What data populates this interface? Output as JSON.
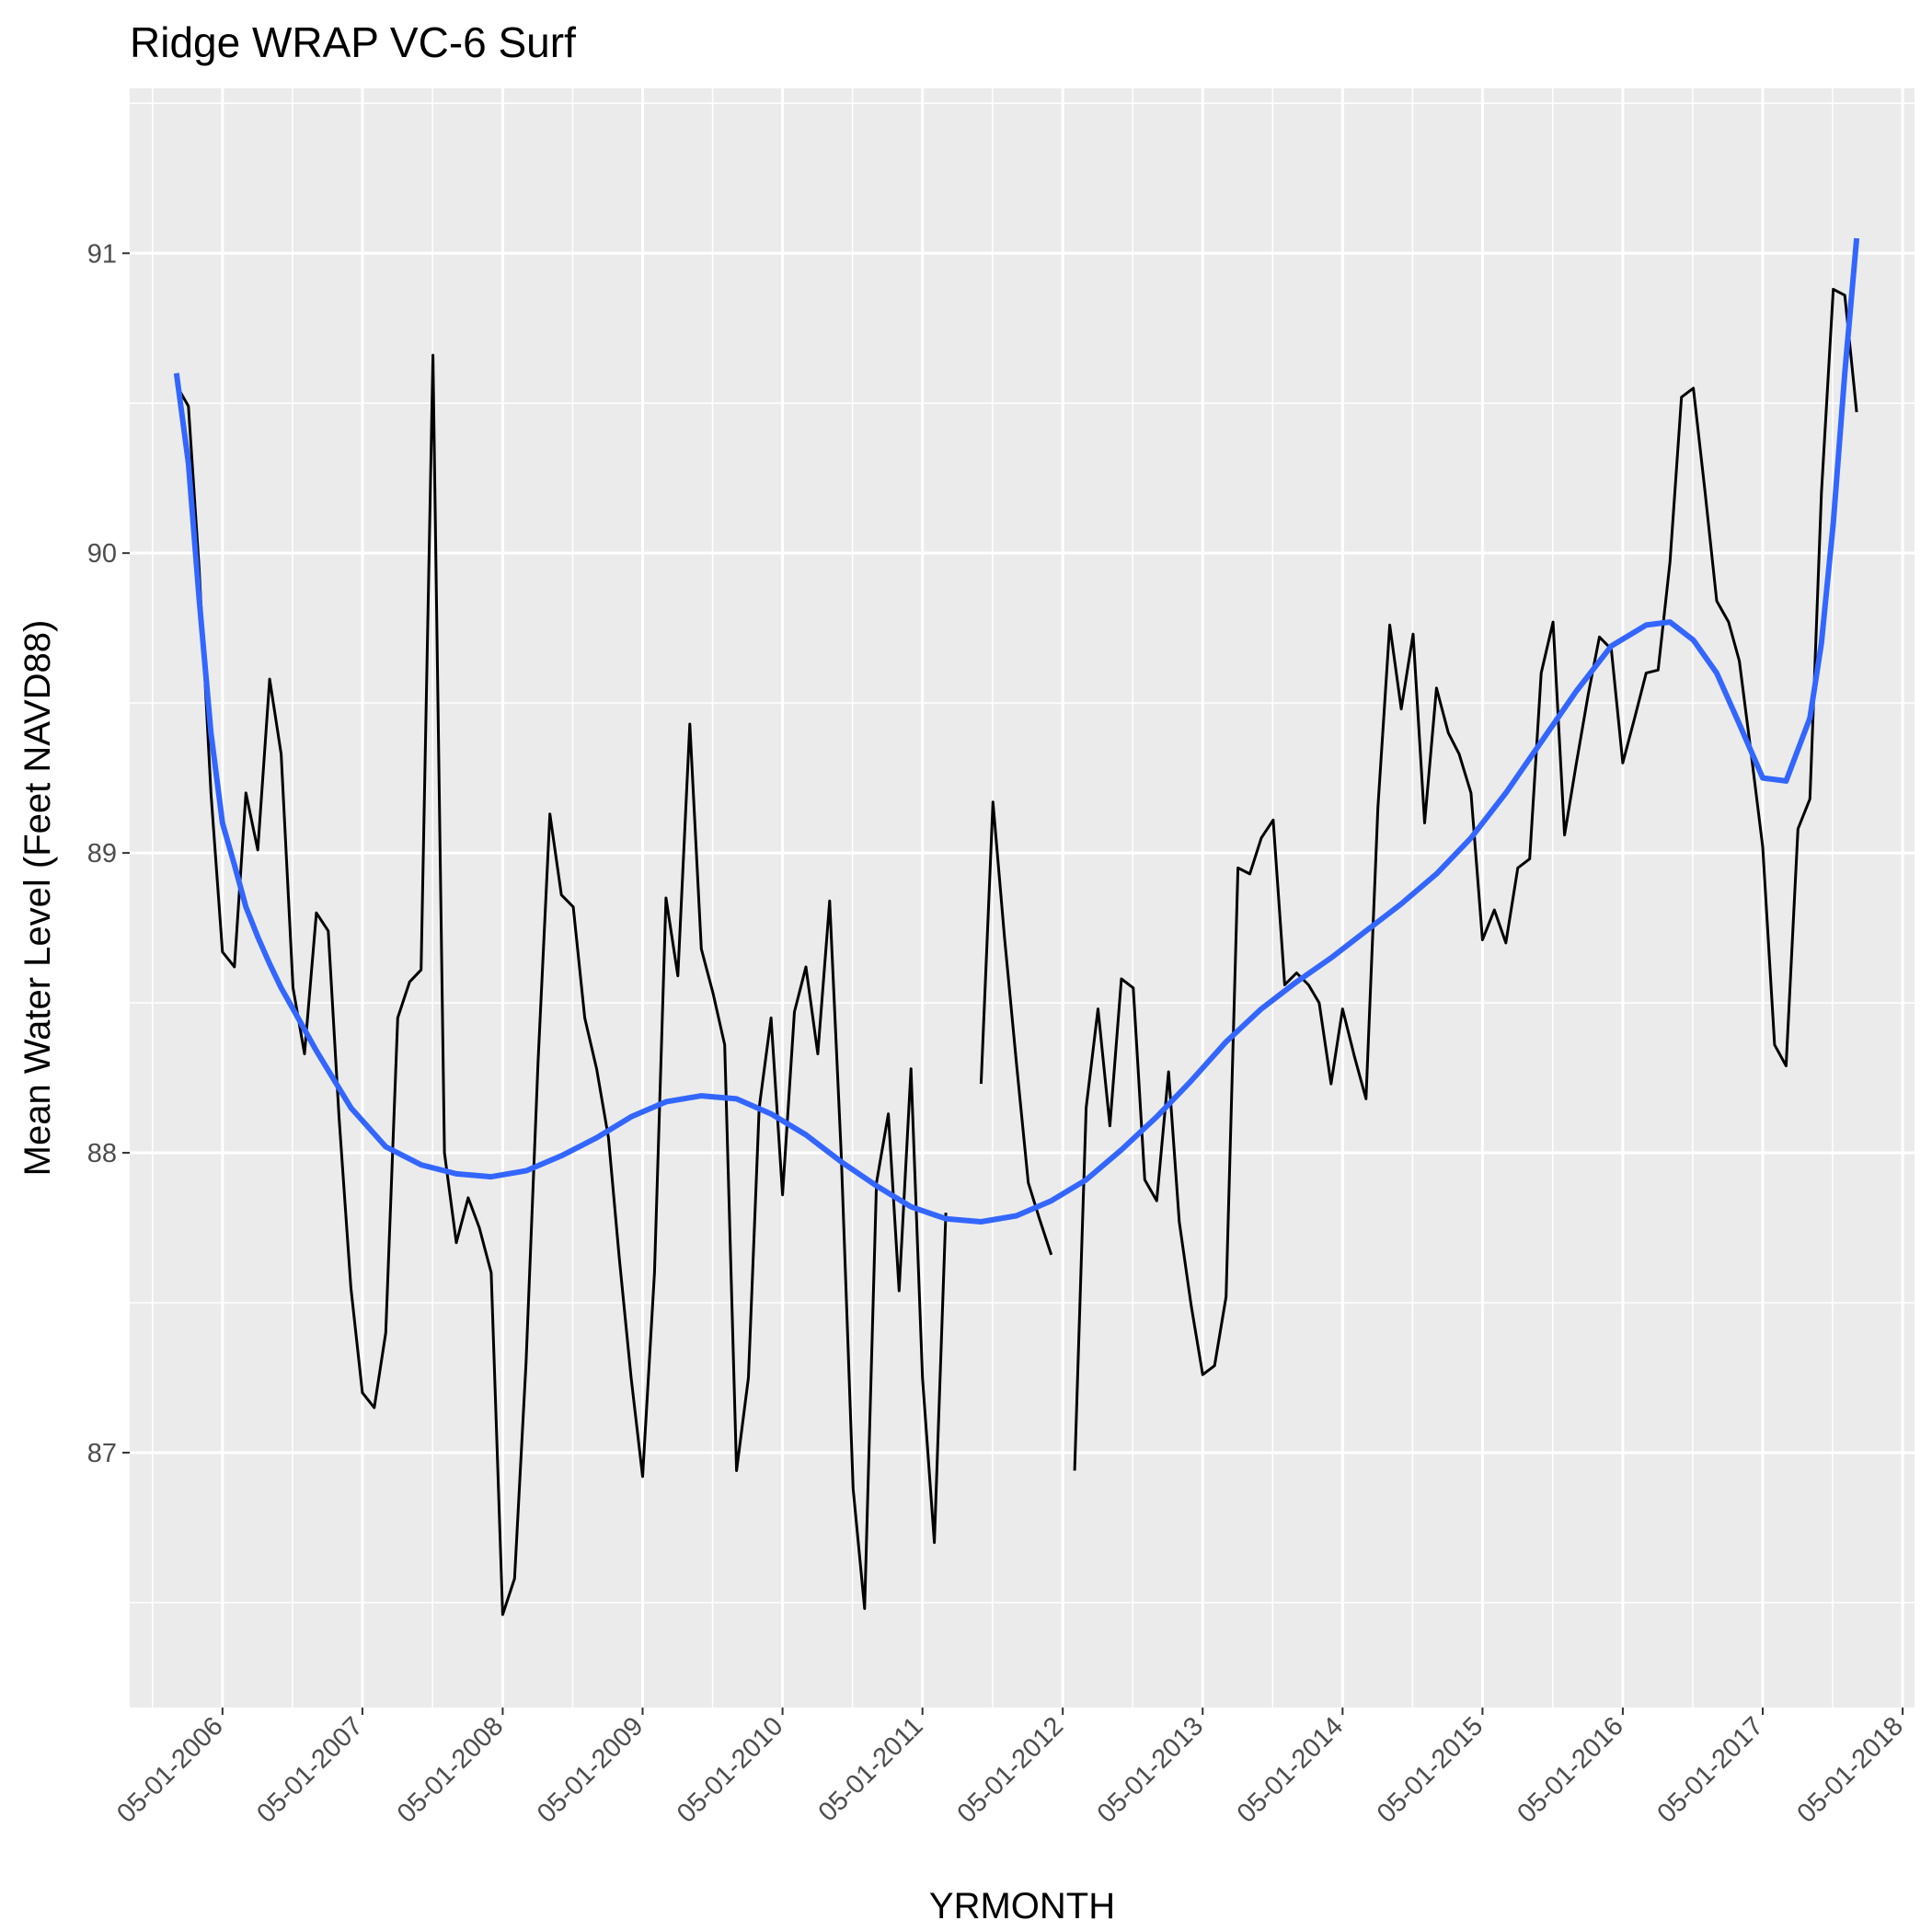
{
  "chart_data": {
    "type": "line",
    "title": "Ridge WRAP VC-6 Surf",
    "xlabel": "YRMONTH",
    "ylabel": "Mean Water Level (Feet NAVD88)",
    "x_type": "date",
    "xlim": [
      "2005-09-01",
      "2018-06-01"
    ],
    "ylim": [
      86.15,
      91.55
    ],
    "grid": true,
    "legend": "none",
    "x_ticks": [
      "2006-05-01",
      "2007-05-01",
      "2008-05-01",
      "2009-05-01",
      "2010-05-01",
      "2011-05-01",
      "2012-05-01",
      "2013-05-01",
      "2014-05-01",
      "2015-05-01",
      "2016-05-01",
      "2017-05-01",
      "2018-05-01"
    ],
    "x_tick_labels": [
      "05-01-2006",
      "05-01-2007",
      "05-01-2008",
      "05-01-2009",
      "05-01-2010",
      "05-01-2011",
      "05-01-2012",
      "05-01-2013",
      "05-01-2014",
      "05-01-2015",
      "05-01-2016",
      "05-01-2017",
      "05-01-2018"
    ],
    "y_ticks": [
      87,
      88,
      89,
      90,
      91
    ],
    "y_tick_labels": [
      "87",
      "88",
      "89",
      "90",
      "91"
    ],
    "colors": {
      "panel_bg": "#ebebeb",
      "grid": "#ffffff",
      "series_line": "#000000",
      "smooth_line": "#3366ff",
      "tick_text": "#4d4d4d"
    },
    "series": [
      {
        "values": [
          [
            "2006-01-01",
            90.56
          ],
          [
            "2006-02-01",
            90.49
          ],
          [
            "2006-03-01",
            89.95
          ],
          [
            "2006-04-01",
            89.2
          ],
          [
            "2006-05-01",
            88.67
          ],
          [
            "2006-06-01",
            88.62
          ],
          [
            "2006-07-01",
            89.2
          ],
          [
            "2006-08-01",
            89.01
          ],
          [
            "2006-09-01",
            89.58
          ],
          [
            "2006-10-01",
            89.33
          ],
          [
            "2006-11-01",
            88.55
          ],
          [
            "2006-12-01",
            88.33
          ],
          [
            "2007-01-01",
            88.8
          ],
          [
            "2007-02-01",
            88.74
          ],
          [
            "2007-03-01",
            88.12
          ],
          [
            "2007-04-01",
            87.55
          ],
          [
            "2007-05-01",
            87.2
          ],
          [
            "2007-06-01",
            87.15
          ],
          [
            "2007-07-01",
            87.4
          ],
          [
            "2007-08-01",
            88.45
          ],
          [
            "2007-09-01",
            88.57
          ],
          [
            "2007-10-01",
            88.61
          ],
          [
            "2007-11-01",
            90.66
          ],
          [
            "2007-12-01",
            88.0
          ],
          [
            "2008-01-01",
            87.7
          ],
          [
            "2008-02-01",
            87.85
          ],
          [
            "2008-03-01",
            87.75
          ],
          [
            "2008-04-01",
            87.6
          ],
          [
            "2008-05-01",
            86.46
          ],
          [
            "2008-06-01",
            86.58
          ],
          [
            "2008-07-01",
            87.3
          ],
          [
            "2008-08-01",
            88.3
          ],
          [
            "2008-09-01",
            89.13
          ],
          [
            "2008-10-01",
            88.86
          ],
          [
            "2008-11-01",
            88.82
          ],
          [
            "2008-12-01",
            88.45
          ],
          [
            "2009-01-01",
            88.28
          ],
          [
            "2009-02-01",
            88.05
          ],
          [
            "2009-03-01",
            87.65
          ],
          [
            "2009-04-01",
            87.25
          ],
          [
            "2009-05-01",
            86.92
          ],
          [
            "2009-06-01",
            87.6
          ],
          [
            "2009-07-01",
            88.85
          ],
          [
            "2009-08-01",
            88.59
          ],
          [
            "2009-09-01",
            89.43
          ],
          [
            "2009-10-01",
            88.68
          ],
          [
            "2009-11-01",
            88.53
          ],
          [
            "2009-12-01",
            88.36
          ],
          [
            "2010-01-01",
            86.94
          ],
          [
            "2010-02-01",
            87.25
          ],
          [
            "2010-03-01",
            88.15
          ],
          [
            "2010-04-01",
            88.45
          ],
          [
            "2010-05-01",
            87.86
          ],
          [
            "2010-06-01",
            88.47
          ],
          [
            "2010-07-01",
            88.62
          ],
          [
            "2010-08-01",
            88.33
          ],
          [
            "2010-09-01",
            88.84
          ],
          [
            "2010-10-01",
            88.0
          ],
          [
            "2010-11-01",
            86.88
          ],
          [
            "2010-12-01",
            86.48
          ],
          [
            "2011-01-01",
            87.9
          ],
          [
            "2011-02-01",
            88.13
          ],
          [
            "2011-03-01",
            87.54
          ],
          [
            "2011-04-01",
            88.28
          ],
          [
            "2011-05-01",
            87.25
          ],
          [
            "2011-06-01",
            86.7
          ],
          [
            "2011-07-01",
            87.8
          ],
          [
            "2011-10-01",
            88.23
          ],
          [
            "2011-11-01",
            89.17
          ],
          [
            "2011-12-01",
            88.72
          ],
          [
            "2012-01-01",
            88.3
          ],
          [
            "2012-02-01",
            87.9
          ],
          [
            "2012-03-01",
            87.78
          ],
          [
            "2012-04-01",
            87.66
          ],
          [
            "2012-06-01",
            86.94
          ],
          [
            "2012-07-01",
            88.15
          ],
          [
            "2012-08-01",
            88.48
          ],
          [
            "2012-09-01",
            88.09
          ],
          [
            "2012-10-01",
            88.58
          ],
          [
            "2012-11-01",
            88.55
          ],
          [
            "2012-12-01",
            87.91
          ],
          [
            "2013-01-01",
            87.84
          ],
          [
            "2013-02-01",
            88.27
          ],
          [
            "2013-03-01",
            87.77
          ],
          [
            "2013-04-01",
            87.49
          ],
          [
            "2013-05-01",
            87.26
          ],
          [
            "2013-06-01",
            87.29
          ],
          [
            "2013-07-01",
            87.52
          ],
          [
            "2013-08-01",
            88.95
          ],
          [
            "2013-09-01",
            88.93
          ],
          [
            "2013-10-01",
            89.05
          ],
          [
            "2013-11-01",
            89.11
          ],
          [
            "2013-12-01",
            88.56
          ],
          [
            "2014-01-01",
            88.6
          ],
          [
            "2014-02-01",
            88.56
          ],
          [
            "2014-03-01",
            88.5
          ],
          [
            "2014-04-01",
            88.23
          ],
          [
            "2014-05-01",
            88.48
          ],
          [
            "2014-06-01",
            88.32
          ],
          [
            "2014-07-01",
            88.18
          ],
          [
            "2014-08-01",
            89.15
          ],
          [
            "2014-09-01",
            89.76
          ],
          [
            "2014-10-01",
            89.48
          ],
          [
            "2014-11-01",
            89.73
          ],
          [
            "2014-12-01",
            89.1
          ],
          [
            "2015-01-01",
            89.55
          ],
          [
            "2015-02-01",
            89.4
          ],
          [
            "2015-03-01",
            89.33
          ],
          [
            "2015-04-01",
            89.2
          ],
          [
            "2015-05-01",
            88.71
          ],
          [
            "2015-06-01",
            88.81
          ],
          [
            "2015-07-01",
            88.7
          ],
          [
            "2015-08-01",
            88.95
          ],
          [
            "2015-09-01",
            88.98
          ],
          [
            "2015-10-01",
            89.6
          ],
          [
            "2015-11-01",
            89.77
          ],
          [
            "2015-12-01",
            89.06
          ],
          [
            "2016-01-01",
            89.3
          ],
          [
            "2016-02-01",
            89.53
          ],
          [
            "2016-03-01",
            89.72
          ],
          [
            "2016-04-01",
            89.68
          ],
          [
            "2016-05-01",
            89.3
          ],
          [
            "2016-06-01",
            89.45
          ],
          [
            "2016-07-01",
            89.6
          ],
          [
            "2016-08-01",
            89.61
          ],
          [
            "2016-09-01",
            89.97
          ],
          [
            "2016-10-01",
            90.52
          ],
          [
            "2016-11-01",
            90.55
          ],
          [
            "2016-12-01",
            90.21
          ],
          [
            "2017-01-01",
            89.84
          ],
          [
            "2017-02-01",
            89.77
          ],
          [
            "2017-03-01",
            89.64
          ],
          [
            "2017-04-01",
            89.33
          ],
          [
            "2017-05-01",
            89.02
          ],
          [
            "2017-06-01",
            88.36
          ],
          [
            "2017-07-01",
            88.29
          ],
          [
            "2017-08-01",
            89.08
          ],
          [
            "2017-09-01",
            89.18
          ],
          [
            "2017-10-01",
            90.2
          ],
          [
            "2017-11-01",
            90.88
          ],
          [
            "2017-12-01",
            90.86
          ],
          [
            "2018-01-01",
            90.47
          ]
        ]
      },
      {
        "values": [
          [
            "2006-01-01",
            90.6
          ],
          [
            "2006-02-01",
            90.3
          ],
          [
            "2006-03-01",
            89.85
          ],
          [
            "2006-04-01",
            89.4
          ],
          [
            "2006-05-01",
            89.1
          ],
          [
            "2006-06-01",
            88.96
          ],
          [
            "2006-07-01",
            88.82
          ],
          [
            "2006-08-01",
            88.72
          ],
          [
            "2006-09-01",
            88.63
          ],
          [
            "2006-10-01",
            88.55
          ],
          [
            "2006-11-01",
            88.48
          ],
          [
            "2007-01-01",
            88.34
          ],
          [
            "2007-04-01",
            88.15
          ],
          [
            "2007-07-01",
            88.02
          ],
          [
            "2007-10-01",
            87.96
          ],
          [
            "2008-01-01",
            87.93
          ],
          [
            "2008-04-01",
            87.92
          ],
          [
            "2008-07-01",
            87.94
          ],
          [
            "2008-10-01",
            87.99
          ],
          [
            "2009-01-01",
            88.05
          ],
          [
            "2009-04-01",
            88.12
          ],
          [
            "2009-07-01",
            88.17
          ],
          [
            "2009-10-01",
            88.19
          ],
          [
            "2010-01-01",
            88.18
          ],
          [
            "2010-04-01",
            88.13
          ],
          [
            "2010-07-01",
            88.06
          ],
          [
            "2010-10-01",
            87.97
          ],
          [
            "2011-01-01",
            87.89
          ],
          [
            "2011-04-01",
            87.82
          ],
          [
            "2011-07-01",
            87.78
          ],
          [
            "2011-10-01",
            87.77
          ],
          [
            "2012-01-01",
            87.79
          ],
          [
            "2012-04-01",
            87.84
          ],
          [
            "2012-07-01",
            87.91
          ],
          [
            "2012-10-01",
            88.01
          ],
          [
            "2013-01-01",
            88.12
          ],
          [
            "2013-04-01",
            88.24
          ],
          [
            "2013-07-01",
            88.37
          ],
          [
            "2013-10-01",
            88.48
          ],
          [
            "2014-01-01",
            88.57
          ],
          [
            "2014-04-01",
            88.65
          ],
          [
            "2014-07-01",
            88.74
          ],
          [
            "2014-10-01",
            88.83
          ],
          [
            "2015-01-01",
            88.93
          ],
          [
            "2015-04-01",
            89.05
          ],
          [
            "2015-07-01",
            89.2
          ],
          [
            "2015-10-01",
            89.37
          ],
          [
            "2016-01-01",
            89.54
          ],
          [
            "2016-04-01",
            89.69
          ],
          [
            "2016-07-01",
            89.76
          ],
          [
            "2016-09-01",
            89.77
          ],
          [
            "2016-11-01",
            89.71
          ],
          [
            "2017-01-01",
            89.6
          ],
          [
            "2017-03-01",
            89.43
          ],
          [
            "2017-05-01",
            89.25
          ],
          [
            "2017-07-01",
            89.24
          ],
          [
            "2017-09-01",
            89.45
          ],
          [
            "2017-10-01",
            89.7
          ],
          [
            "2017-11-01",
            90.1
          ],
          [
            "2017-12-01",
            90.6
          ],
          [
            "2018-01-01",
            91.05
          ]
        ]
      }
    ]
  }
}
